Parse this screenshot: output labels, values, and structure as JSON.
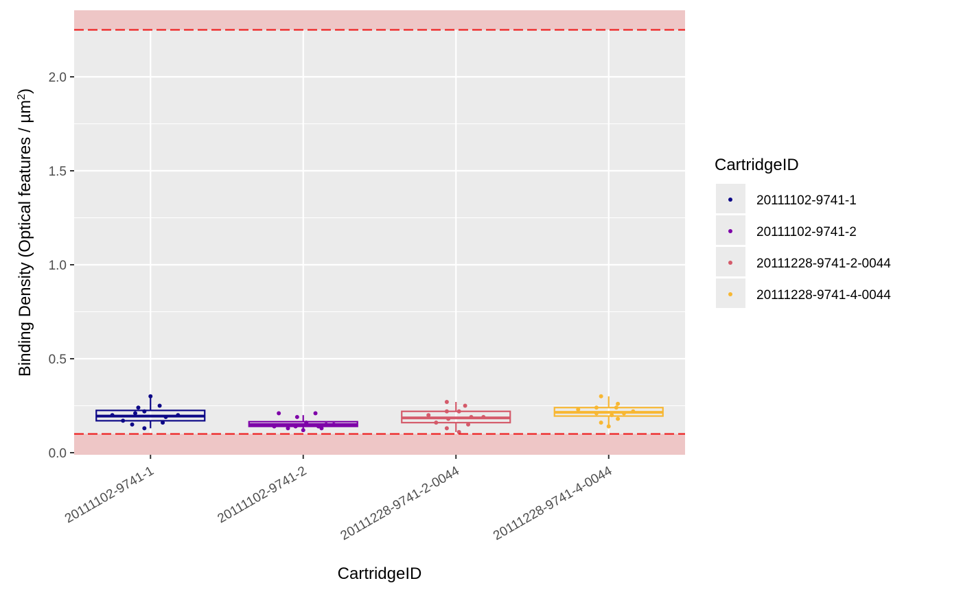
{
  "chart_data": {
    "type": "box",
    "xlabel": "CartridgeID",
    "ylabel": "Binding Density (Optical features / µm",
    "ylabel_superscript": "2",
    "ylabel_suffix": ")",
    "ylim": [
      0,
      2.36
    ],
    "yticks": [
      0.0,
      0.5,
      1.0,
      1.5,
      2.0
    ],
    "ytick_labels": [
      "0.0",
      "0.5",
      "1.0",
      "1.5",
      "2.0"
    ],
    "grid": true,
    "legend_title": "CartridgeID",
    "legend_position": "right",
    "thresholds": {
      "lower": 0.1,
      "upper": 2.25,
      "line_color": "#ee2222",
      "band_color": "#eec6c6"
    },
    "categories": [
      "20111102-9741-1",
      "20111102-9741-2",
      "20111228-9741-2-0044",
      "20111228-9741-4-0044"
    ],
    "series": [
      {
        "name": "20111102-9741-1",
        "color": "#0d0887",
        "box": {
          "whisker_low": 0.13,
          "q1": 0.17,
          "median": 0.195,
          "q3": 0.225,
          "whisker_high": 0.3
        },
        "points": [
          [
            -0.25,
            0.2
          ],
          [
            -0.1,
            0.21
          ],
          [
            -0.08,
            0.24
          ],
          [
            -0.12,
            0.15
          ],
          [
            -0.04,
            0.13
          ],
          [
            -0.04,
            0.22
          ],
          [
            0.06,
            0.25
          ],
          [
            0.08,
            0.16
          ],
          [
            0.18,
            0.2
          ],
          [
            -0.18,
            0.17
          ],
          [
            0.0,
            0.3
          ],
          [
            0.1,
            0.19
          ]
        ]
      },
      {
        "name": "20111102-9741-2",
        "color": "#7e03a8",
        "box": {
          "whisker_low": 0.12,
          "q1": 0.14,
          "median": 0.15,
          "q3": 0.165,
          "whisker_high": 0.2
        },
        "points": [
          [
            -0.16,
            0.21
          ],
          [
            -0.04,
            0.19
          ],
          [
            0.08,
            0.21
          ],
          [
            -0.19,
            0.14
          ],
          [
            -0.1,
            0.13
          ],
          [
            0.0,
            0.12
          ],
          [
            0.1,
            0.14
          ],
          [
            0.12,
            0.13
          ],
          [
            0.02,
            0.16
          ],
          [
            -0.05,
            0.14
          ],
          [
            0.15,
            0.15
          ],
          [
            0.2,
            0.15
          ]
        ]
      },
      {
        "name": "20111228-9741-2-0044",
        "color": "#d45a6a",
        "box": {
          "whisker_low": 0.11,
          "q1": 0.16,
          "median": 0.185,
          "q3": 0.22,
          "whisker_high": 0.27
        },
        "points": [
          [
            -0.18,
            0.2
          ],
          [
            -0.13,
            0.16
          ],
          [
            -0.06,
            0.22
          ],
          [
            -0.06,
            0.27
          ],
          [
            -0.06,
            0.13
          ],
          [
            0.02,
            0.11
          ],
          [
            0.02,
            0.22
          ],
          [
            0.06,
            0.25
          ],
          [
            0.08,
            0.15
          ],
          [
            0.18,
            0.19
          ],
          [
            -0.05,
            0.18
          ],
          [
            0.1,
            0.19
          ]
        ]
      },
      {
        "name": "20111228-9741-4-0044",
        "color": "#f7b733",
        "box": {
          "whisker_low": 0.14,
          "q1": 0.195,
          "median": 0.215,
          "q3": 0.24,
          "whisker_high": 0.3
        },
        "points": [
          [
            -0.2,
            0.23
          ],
          [
            -0.08,
            0.21
          ],
          [
            -0.08,
            0.24
          ],
          [
            -0.05,
            0.3
          ],
          [
            -0.05,
            0.16
          ],
          [
            0.0,
            0.14
          ],
          [
            0.02,
            0.2
          ],
          [
            0.05,
            0.24
          ],
          [
            0.06,
            0.18
          ],
          [
            0.06,
            0.26
          ],
          [
            0.16,
            0.22
          ],
          [
            0.1,
            0.21
          ]
        ]
      }
    ]
  }
}
